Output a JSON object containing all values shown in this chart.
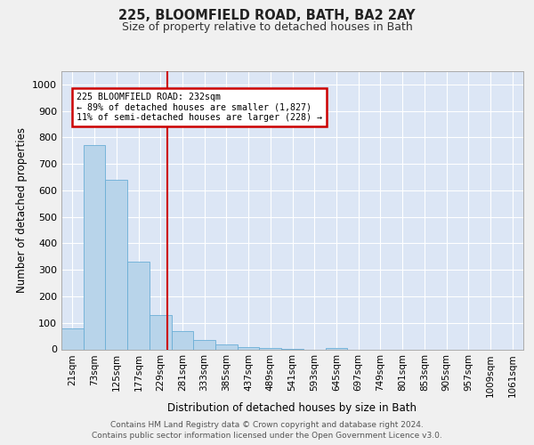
{
  "title1": "225, BLOOMFIELD ROAD, BATH, BA2 2AY",
  "title2": "Size of property relative to detached houses in Bath",
  "xlabel": "Distribution of detached houses by size in Bath",
  "ylabel": "Number of detached properties",
  "bin_labels": [
    "21sqm",
    "73sqm",
    "125sqm",
    "177sqm",
    "229sqm",
    "281sqm",
    "333sqm",
    "385sqm",
    "437sqm",
    "489sqm",
    "541sqm",
    "593sqm",
    "645sqm",
    "697sqm",
    "749sqm",
    "801sqm",
    "853sqm",
    "905sqm",
    "957sqm",
    "1009sqm",
    "1061sqm"
  ],
  "bar_values": [
    80,
    770,
    640,
    330,
    130,
    70,
    35,
    20,
    10,
    5,
    2,
    0,
    5,
    0,
    0,
    0,
    0,
    0,
    0,
    0,
    0
  ],
  "bar_color": "#b8d4ea",
  "bar_edgecolor": "#6aaed6",
  "vline_color": "#cc0000",
  "annotation_text": "225 BLOOMFIELD ROAD: 232sqm\n← 89% of detached houses are smaller (1,827)\n11% of semi-detached houses are larger (228) →",
  "annotation_box_edgecolor": "#cc0000",
  "ylim": [
    0,
    1050
  ],
  "yticks": [
    0,
    100,
    200,
    300,
    400,
    500,
    600,
    700,
    800,
    900,
    1000
  ],
  "footer1": "Contains HM Land Registry data © Crown copyright and database right 2024.",
  "footer2": "Contains public sector information licensed under the Open Government Licence v3.0.",
  "bg_color": "#dce6f5",
  "fig_bg_color": "#f0f0f0",
  "vline_idx": 4.32
}
